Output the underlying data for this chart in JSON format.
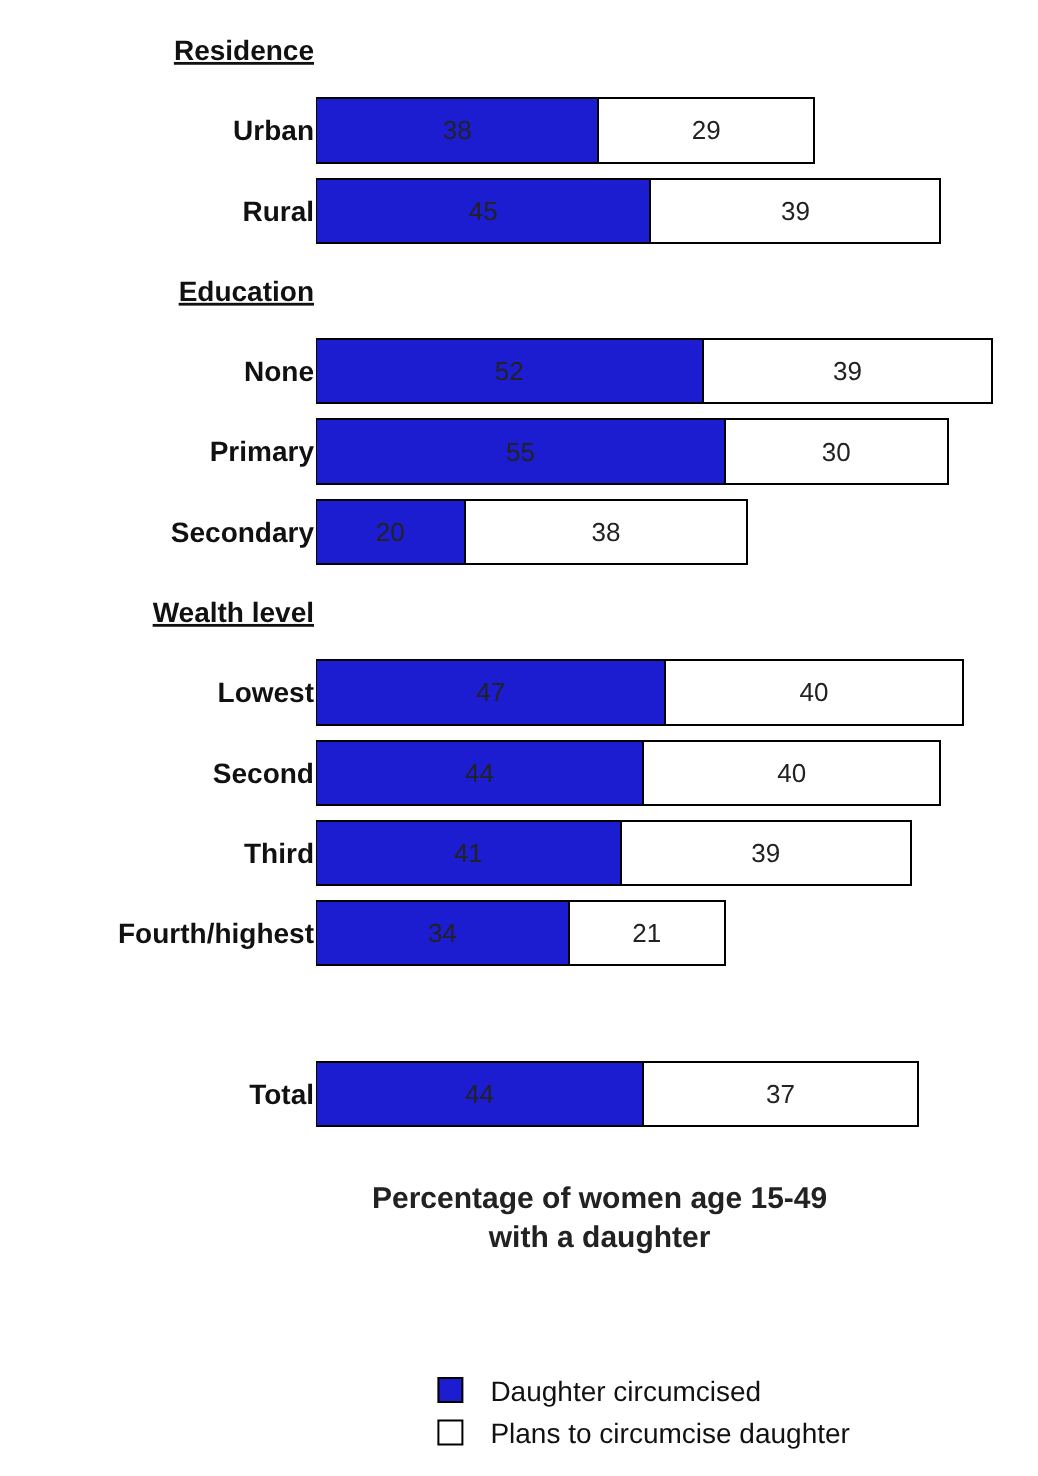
{
  "chart_data": {
    "type": "bar",
    "orientation": "horizontal",
    "stacked": true,
    "data_labels": true,
    "tick_labels": "y",
    "legend": "bottom",
    "xlabel": "Percentage of women age 15-49\nwith a daughter",
    "categories": [
      "Residence",
      "Urban",
      "Rural",
      "Education",
      "None",
      "Primary",
      "Secondary",
      "Wealth level",
      "Lowest",
      "Second",
      "Third",
      "Fourth/highest",
      null,
      "Total"
    ],
    "series": [
      {
        "name": "Daughter circumcised",
        "color": "#1c1cd0",
        "values": [
          null,
          38,
          45,
          null,
          52,
          55,
          20,
          null,
          47,
          44,
          41,
          34,
          null,
          44
        ]
      },
      {
        "name": "Plans to circumcise daughter",
        "color": "#ffffff",
        "values": [
          null,
          29,
          39,
          null,
          39,
          30,
          38,
          null,
          40,
          40,
          39,
          21,
          null,
          37
        ]
      }
    ]
  }
}
